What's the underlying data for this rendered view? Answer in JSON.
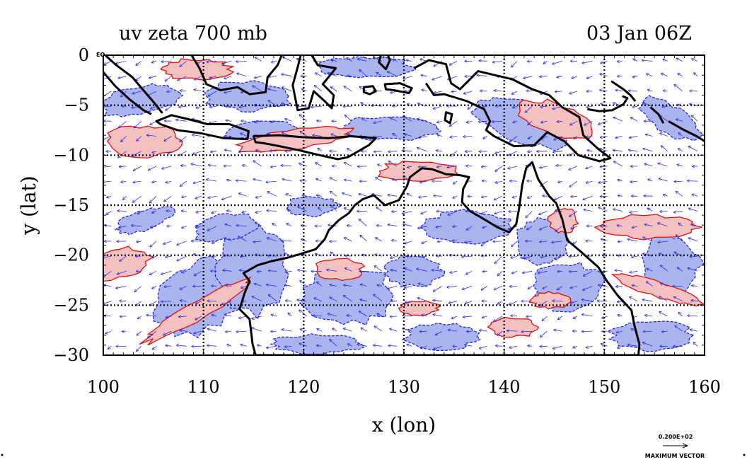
{
  "chart_data": {
    "type": "vector-contour-map",
    "title_left": "uv zeta 700 mb",
    "title_right": "03 Jan 06Z",
    "xlabel": "x (lon)",
    "ylabel": "y (lat)",
    "xlim": [
      100,
      160
    ],
    "ylim": [
      -30,
      0
    ],
    "x_ticks": [
      100,
      110,
      120,
      130,
      140,
      150,
      160
    ],
    "x_tick_labels": [
      "100",
      "110",
      "120",
      "130",
      "140",
      "150",
      "160"
    ],
    "y_ticks": [
      0,
      -5,
      -10,
      -15,
      -20,
      -25,
      -30
    ],
    "y_tick_labels": [
      "0",
      "−5",
      "−10",
      "−15",
      "−20",
      "−25",
      "−30"
    ],
    "equator_label": "EQ",
    "reference_vector": {
      "value_label": "0.200E+02",
      "caption": "MAXIMUM VECTOR"
    },
    "grid": "dotted every 10 degrees",
    "colors": {
      "negative_vorticity_fill": "#aab4ee",
      "positive_vorticity_fill": "#f5c0c0",
      "negative_contour": "#1a1ae8",
      "positive_contour": "#e01010",
      "wind_vectors": "#2a2ae8",
      "coastline": "#000000"
    },
    "positive_regions": [
      {
        "lon": 101.6,
        "lat": -20.9,
        "rlon": 3.2,
        "rlat": 1.5,
        "rot": -12
      },
      {
        "lon": 109.5,
        "lat": -25.5,
        "rlon": 6.5,
        "rlat": 1.0,
        "rot": -30
      },
      {
        "lon": 109.2,
        "lat": -1.4,
        "rlon": 3.6,
        "rlat": 1.0,
        "rot": 0
      },
      {
        "lon": 119.0,
        "lat": -8.4,
        "rlon": 6.0,
        "rlat": 1.0,
        "rot": -8
      },
      {
        "lon": 104.0,
        "lat": -8.6,
        "rlon": 3.6,
        "rlat": 1.6,
        "rot": 0
      },
      {
        "lon": 131.4,
        "lat": -11.6,
        "rlon": 4.0,
        "rlat": 1.0,
        "rot": 0
      },
      {
        "lon": 145.2,
        "lat": -6.4,
        "rlon": 3.8,
        "rlat": 1.6,
        "rot": 18
      },
      {
        "lon": 154.6,
        "lat": -17.2,
        "rlon": 5.0,
        "rlat": 1.2,
        "rot": 0
      },
      {
        "lon": 155.3,
        "lat": -23.4,
        "rlon": 4.4,
        "rlat": 0.8,
        "rot": 18
      },
      {
        "lon": 145.9,
        "lat": -16.5,
        "rlon": 1.4,
        "rlat": 1.3,
        "rot": 0
      },
      {
        "lon": 141.0,
        "lat": -27.2,
        "rlon": 2.4,
        "rlat": 1.0,
        "rot": 0
      },
      {
        "lon": 123.5,
        "lat": -21.4,
        "rlon": 2.4,
        "rlat": 1.1,
        "rot": 0
      },
      {
        "lon": 131.5,
        "lat": -25.3,
        "rlon": 2.0,
        "rlat": 0.7,
        "rot": 0
      },
      {
        "lon": 144.7,
        "lat": -24.5,
        "rlon": 2.0,
        "rlat": 0.8,
        "rot": 0
      }
    ],
    "negative_regions": [
      {
        "lon": 109.5,
        "lat": -24.2,
        "rlon": 5.0,
        "rlat": 3.4,
        "rot": -28
      },
      {
        "lon": 115.0,
        "lat": -21.5,
        "rlon": 3.5,
        "rlat": 4.5,
        "rot": -10
      },
      {
        "lon": 124.5,
        "lat": -24.0,
        "rlon": 4.5,
        "rlat": 3.0,
        "rot": 0
      },
      {
        "lon": 114.4,
        "lat": -4.1,
        "rlon": 4.4,
        "rlat": 1.5,
        "rot": 0
      },
      {
        "lon": 103.8,
        "lat": -4.5,
        "rlon": 4.0,
        "rlat": 1.5,
        "rot": -12
      },
      {
        "lon": 126.1,
        "lat": -1.2,
        "rlon": 5.0,
        "rlat": 1.0,
        "rot": 0
      },
      {
        "lon": 128.6,
        "lat": -7.3,
        "rlon": 5.4,
        "rlat": 1.2,
        "rot": 0
      },
      {
        "lon": 141.8,
        "lat": -6.7,
        "rlon": 5.2,
        "rlat": 2.0,
        "rot": 22
      },
      {
        "lon": 156.5,
        "lat": -6.4,
        "rlon": 3.6,
        "rlat": 1.4,
        "rot": 30
      },
      {
        "lon": 156.6,
        "lat": -20.9,
        "rlon": 3.0,
        "rlat": 3.0,
        "rot": 0
      },
      {
        "lon": 154.6,
        "lat": -28.0,
        "rlon": 4.0,
        "rlat": 1.5,
        "rot": 0
      },
      {
        "lon": 112.2,
        "lat": -17.2,
        "rlon": 3.4,
        "rlat": 1.3,
        "rot": -10
      },
      {
        "lon": 120.8,
        "lat": -15.1,
        "rlon": 2.6,
        "rlat": 1.0,
        "rot": 0
      },
      {
        "lon": 104.1,
        "lat": -16.5,
        "rlon": 3.0,
        "rlat": 1.0,
        "rot": -18
      },
      {
        "lon": 136.5,
        "lat": -17.2,
        "rlon": 4.4,
        "rlat": 1.6,
        "rot": 0
      },
      {
        "lon": 143.7,
        "lat": -18.6,
        "rlon": 2.6,
        "rlat": 2.4,
        "rot": 0
      },
      {
        "lon": 146.3,
        "lat": -23.1,
        "rlon": 3.6,
        "rlat": 2.4,
        "rot": 0
      },
      {
        "lon": 121.3,
        "lat": -28.9,
        "rlon": 4.4,
        "rlat": 1.0,
        "rot": 0
      },
      {
        "lon": 133.8,
        "lat": -28.1,
        "rlon": 3.8,
        "rlat": 1.3,
        "rot": 0
      },
      {
        "lon": 130.9,
        "lat": -21.6,
        "rlon": 3.0,
        "rlat": 1.5,
        "rot": 0
      },
      {
        "lon": 115.8,
        "lat": -7.5,
        "rlon": 3.5,
        "rlat": 0.9,
        "rot": -5
      }
    ],
    "coastlines": [
      {
        "name": "australia",
        "closed": true,
        "points": [
          [
            114.0,
            -21.8
          ],
          [
            114.6,
            -22.6
          ],
          [
            114.1,
            -23.8
          ],
          [
            113.6,
            -25.4
          ],
          [
            114.6,
            -26.4
          ],
          [
            114.9,
            -28.9
          ],
          [
            115.2,
            -30.0
          ],
          [
            153.4,
            -30.0
          ],
          [
            153.5,
            -28.9
          ],
          [
            153.0,
            -27.0
          ],
          [
            152.7,
            -25.5
          ],
          [
            151.3,
            -24.0
          ],
          [
            150.2,
            -22.5
          ],
          [
            149.4,
            -21.2
          ],
          [
            147.6,
            -19.6
          ],
          [
            146.3,
            -18.5
          ],
          [
            145.8,
            -16.4
          ],
          [
            145.2,
            -14.8
          ],
          [
            144.5,
            -14.1
          ],
          [
            143.4,
            -12.4
          ],
          [
            142.8,
            -10.7
          ],
          [
            142.2,
            -11.3
          ],
          [
            141.8,
            -13.0
          ],
          [
            141.5,
            -15.3
          ],
          [
            141.2,
            -16.9
          ],
          [
            140.5,
            -17.7
          ],
          [
            139.3,
            -17.2
          ],
          [
            138.0,
            -16.4
          ],
          [
            136.6,
            -15.6
          ],
          [
            135.8,
            -14.7
          ],
          [
            135.9,
            -13.4
          ],
          [
            136.5,
            -12.2
          ],
          [
            135.6,
            -12.0
          ],
          [
            134.2,
            -11.9
          ],
          [
            132.8,
            -11.4
          ],
          [
            131.8,
            -11.3
          ],
          [
            130.6,
            -12.2
          ],
          [
            130.3,
            -13.1
          ],
          [
            129.5,
            -14.5
          ],
          [
            128.1,
            -15.0
          ],
          [
            127.0,
            -14.0
          ],
          [
            125.9,
            -14.4
          ],
          [
            125.1,
            -15.0
          ],
          [
            124.5,
            -15.8
          ],
          [
            123.5,
            -16.5
          ],
          [
            122.5,
            -17.5
          ],
          [
            122.1,
            -18.4
          ],
          [
            121.2,
            -19.4
          ],
          [
            119.6,
            -19.9
          ],
          [
            118.2,
            -20.3
          ],
          [
            116.8,
            -20.6
          ],
          [
            115.4,
            -21.0
          ]
        ]
      },
      {
        "name": "sumatra",
        "closed": false,
        "points": [
          [
            100.2,
            0.0
          ],
          [
            101.3,
            -1.0
          ],
          [
            102.9,
            -2.2
          ],
          [
            104.0,
            -3.5
          ],
          [
            105.2,
            -4.9
          ],
          [
            105.9,
            -5.8
          ]
        ]
      },
      {
        "name": "sumatra-west",
        "closed": false,
        "points": [
          [
            100.0,
            -1.7
          ],
          [
            101.2,
            -3.1
          ],
          [
            102.6,
            -4.4
          ],
          [
            104.0,
            -5.5
          ],
          [
            104.8,
            -5.9
          ]
        ]
      },
      {
        "name": "java",
        "closed": true,
        "points": [
          [
            105.3,
            -6.6
          ],
          [
            106.8,
            -6.0
          ],
          [
            108.5,
            -6.4
          ],
          [
            110.4,
            -6.9
          ],
          [
            112.6,
            -6.9
          ],
          [
            114.5,
            -7.6
          ],
          [
            114.4,
            -8.4
          ],
          [
            112.0,
            -8.3
          ],
          [
            109.7,
            -7.8
          ],
          [
            107.4,
            -7.5
          ],
          [
            105.7,
            -6.9
          ]
        ]
      },
      {
        "name": "lesser-sunda",
        "closed": true,
        "points": [
          [
            115.0,
            -8.1
          ],
          [
            117.5,
            -8.0
          ],
          [
            119.9,
            -8.2
          ],
          [
            122.5,
            -8.3
          ],
          [
            124.7,
            -8.1
          ],
          [
            127.2,
            -8.3
          ],
          [
            126.5,
            -9.0
          ],
          [
            124.4,
            -10.2
          ],
          [
            123.4,
            -10.4
          ],
          [
            121.6,
            -10.0
          ],
          [
            119.5,
            -9.5
          ],
          [
            117.6,
            -9.1
          ],
          [
            116.0,
            -8.8
          ],
          [
            115.2,
            -8.7
          ]
        ]
      },
      {
        "name": "borneo",
        "closed": false,
        "points": [
          [
            108.8,
            0.0
          ],
          [
            109.6,
            -1.3
          ],
          [
            110.3,
            -2.9
          ],
          [
            111.7,
            -3.5
          ],
          [
            113.4,
            -3.2
          ],
          [
            114.6,
            -3.9
          ],
          [
            116.2,
            -3.7
          ],
          [
            116.4,
            -2.2
          ],
          [
            117.4,
            -1.0
          ],
          [
            117.8,
            0.0
          ]
        ]
      },
      {
        "name": "sulawesi",
        "closed": false,
        "points": [
          [
            119.7,
            0.0
          ],
          [
            119.4,
            -1.2
          ],
          [
            118.9,
            -3.0
          ],
          [
            119.4,
            -5.5
          ],
          [
            120.5,
            -5.3
          ],
          [
            121.0,
            -3.6
          ],
          [
            122.2,
            -4.7
          ],
          [
            122.8,
            -5.3
          ],
          [
            123.0,
            -4.0
          ],
          [
            121.9,
            -2.9
          ],
          [
            123.2,
            -1.3
          ],
          [
            121.4,
            -1.0
          ],
          [
            120.8,
            0.0
          ]
        ]
      },
      {
        "name": "new-guinea",
        "closed": false,
        "points": [
          [
            131.0,
            -1.3
          ],
          [
            132.5,
            -0.5
          ],
          [
            134.2,
            -0.9
          ],
          [
            134.7,
            -2.8
          ],
          [
            135.6,
            -3.4
          ],
          [
            137.4,
            -1.6
          ],
          [
            140.8,
            -2.4
          ],
          [
            142.8,
            -3.4
          ],
          [
            144.5,
            -4.0
          ],
          [
            145.8,
            -5.2
          ],
          [
            147.5,
            -6.2
          ],
          [
            147.9,
            -8.0
          ],
          [
            149.3,
            -9.3
          ],
          [
            150.6,
            -10.3
          ],
          [
            149.5,
            -10.6
          ],
          [
            147.4,
            -10.0
          ],
          [
            146.0,
            -8.6
          ],
          [
            144.3,
            -7.7
          ],
          [
            143.0,
            -9.0
          ],
          [
            141.0,
            -9.1
          ],
          [
            139.0,
            -8.1
          ],
          [
            138.2,
            -7.5
          ],
          [
            138.6,
            -6.6
          ],
          [
            138.0,
            -5.4
          ],
          [
            136.3,
            -4.6
          ],
          [
            134.0,
            -3.9
          ],
          [
            133.0,
            -4.0
          ],
          [
            132.2,
            -2.8
          ]
        ]
      },
      {
        "name": "halmahera",
        "closed": false,
        "points": [
          [
            127.7,
            0.0
          ],
          [
            127.5,
            -0.7
          ],
          [
            128.2,
            -1.4
          ],
          [
            128.6,
            -0.5
          ],
          [
            128.4,
            0.0
          ]
        ]
      },
      {
        "name": "seram",
        "closed": true,
        "points": [
          [
            128.1,
            -2.9
          ],
          [
            129.6,
            -2.8
          ],
          [
            130.8,
            -3.3
          ],
          [
            130.5,
            -3.8
          ],
          [
            129.0,
            -3.5
          ],
          [
            128.2,
            -3.4
          ]
        ]
      },
      {
        "name": "buru",
        "closed": true,
        "points": [
          [
            126.0,
            -3.2
          ],
          [
            126.9,
            -3.1
          ],
          [
            127.2,
            -3.6
          ],
          [
            126.6,
            -3.9
          ],
          [
            126.0,
            -3.7
          ]
        ]
      },
      {
        "name": "aru",
        "closed": true,
        "points": [
          [
            134.2,
            -5.7
          ],
          [
            134.8,
            -5.9
          ],
          [
            134.6,
            -6.8
          ],
          [
            134.1,
            -6.5
          ]
        ]
      },
      {
        "name": "new-britain",
        "closed": false,
        "points": [
          [
            148.3,
            -5.4
          ],
          [
            149.5,
            -5.6
          ],
          [
            150.8,
            -5.5
          ],
          [
            151.9,
            -4.9
          ],
          [
            152.3,
            -4.3
          ],
          [
            151.8,
            -4.1
          ]
        ]
      },
      {
        "name": "new-ireland",
        "closed": false,
        "points": [
          [
            150.7,
            -2.6
          ],
          [
            151.9,
            -3.4
          ],
          [
            152.6,
            -4.0
          ],
          [
            153.1,
            -4.6
          ]
        ]
      },
      {
        "name": "bougainville",
        "closed": false,
        "points": [
          [
            154.6,
            -5.2
          ],
          [
            155.4,
            -5.9
          ],
          [
            155.9,
            -6.8
          ]
        ]
      },
      {
        "name": "solomons",
        "closed": false,
        "points": [
          [
            156.4,
            -6.6
          ],
          [
            157.8,
            -7.4
          ],
          [
            159.2,
            -8.1
          ],
          [
            160.0,
            -8.6
          ]
        ]
      }
    ]
  }
}
